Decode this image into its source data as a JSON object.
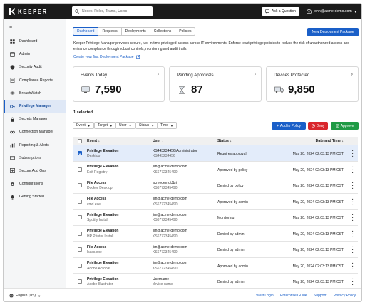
{
  "brand": {
    "name": "KEEPER"
  },
  "header": {
    "search_placeholder": "Nodes, Roles, Teams, Users",
    "ask_label": "Ask a Question",
    "user_email": "john@acme-demo.com"
  },
  "sidebar": {
    "items": [
      {
        "label": "Dashboard",
        "icon": "dashboard-icon"
      },
      {
        "label": "Admin",
        "icon": "admin-icon"
      },
      {
        "label": "Security Audit",
        "icon": "shield-icon"
      },
      {
        "label": "Compliance Reports",
        "icon": "document-icon"
      },
      {
        "label": "BreachWatch",
        "icon": "eye-icon"
      },
      {
        "label": "Privilege Manager",
        "icon": "key-icon"
      },
      {
        "label": "Secrets Manager",
        "icon": "lock-icon"
      },
      {
        "label": "Connection Manager",
        "icon": "link-icon"
      },
      {
        "label": "Reporting & Alerts",
        "icon": "report-icon"
      },
      {
        "label": "Subscriptions",
        "icon": "subscription-icon"
      },
      {
        "label": "Secure Add Ons",
        "icon": "plus-box-icon"
      },
      {
        "label": "Configurations",
        "icon": "gear-icon"
      },
      {
        "label": "Getting Started",
        "icon": "rocket-icon"
      }
    ],
    "active_index": 5
  },
  "tabs": [
    "Dashboard",
    "Requests",
    "Deployments",
    "Collections",
    "Policies"
  ],
  "active_tab": 0,
  "new_deployment_label": "New Deployment Package",
  "description": "Keeper Privilege Manager provides secure, just-in-time privileged access across IT environments. Enforce least privilege policies to reduce the risk of unauthorized access and enhance compliance through robust controls, monitoring and audit trails.",
  "create_link": "Create your first Deployment Package",
  "cards": [
    {
      "label": "Events Today",
      "value": "7,590",
      "icon": "monitor-icon"
    },
    {
      "label": "Pending Approvals",
      "value": "87",
      "icon": "hourglass-icon"
    },
    {
      "label": "Devices Protected",
      "value": "9,850",
      "icon": "truck-icon"
    }
  ],
  "selected_text": "1 selected",
  "filters": [
    "Event",
    "Target",
    "User",
    "Status",
    "Time"
  ],
  "actions": {
    "add_policy": "Add to Policy",
    "deny": "Deny",
    "approve": "Approve"
  },
  "table": {
    "headers": {
      "event": "Event",
      "user": "User",
      "status": "Status",
      "datetime": "Date and Time"
    },
    "rows": [
      {
        "event": "Privilege Elevation",
        "target": "Desktop",
        "user": "KS443234456\\Administrator",
        "user_id": "KS443234456",
        "status": "Requires approval",
        "datetime": "May 20, 2024 02:03:13 PM CST",
        "selected": true
      },
      {
        "event": "Privilege Elevation",
        "target": "Edit Registry",
        "user": "jim@acme-demo.com",
        "user_id": "KS6772345490",
        "status": "Approved by policy",
        "datetime": "May 20, 2024 02:03:13 PM CST",
        "selected": false
      },
      {
        "event": "File Access",
        "target": "Docker Desktop",
        "user": "acmedemo\\Jbri",
        "user_id": "KS6772345490",
        "status": "Denied by policy",
        "datetime": "May 20, 2024 02:03:13 PM CST",
        "selected": false
      },
      {
        "event": "File Access",
        "target": "cmd.exe",
        "user": "jim@acme-demo.com",
        "user_id": "KS6772345490",
        "status": "Approved by admin",
        "datetime": "May 20, 2024 02:03:13 PM CST",
        "selected": false
      },
      {
        "event": "Privilege Elevation",
        "target": "Spotify Install",
        "user": "jim@acme-demo.com",
        "user_id": "KS6772345490",
        "status": "Monitoring",
        "datetime": "May 20, 2024 02:03:13 PM CST",
        "selected": false
      },
      {
        "event": "Privilege Elevation",
        "target": "HP Printer Install",
        "user": "jim@acme-demo.com",
        "user_id": "KS6772345490",
        "status": "Denied by admin",
        "datetime": "May 20, 2024 02:03:13 PM CST",
        "selected": false
      },
      {
        "event": "File Access",
        "target": "lsass.exe",
        "user": "jim@acme-demo.com",
        "user_id": "KS6772345490",
        "status": "Denied by admin",
        "datetime": "May 20, 2024 02:03:13 PM CST",
        "selected": false
      },
      {
        "event": "Privilege Elevation",
        "target": "Adobe Acrobat",
        "user": "jim@acme-demo.com",
        "user_id": "KS6772345490",
        "status": "Approved by admin",
        "datetime": "May 20, 2024 02:03:13 PM CST",
        "selected": false
      },
      {
        "event": "Privilege Elevation",
        "target": "Adobe Illustrator",
        "user": "Username",
        "user_id": "device-name",
        "status": "Denied by admin",
        "datetime": "May 20, 2024 02:03:13 PM CST",
        "selected": false
      }
    ]
  },
  "footer": {
    "language": "English (US)",
    "links": [
      "Vault Login",
      "Enterprise Guide",
      "Support",
      "Privacy Policy"
    ]
  },
  "colors": {
    "accent": "#1a5fc8",
    "deny": "#d9262c",
    "approve": "#1f9a45",
    "topbar": "#1b1b1b"
  }
}
